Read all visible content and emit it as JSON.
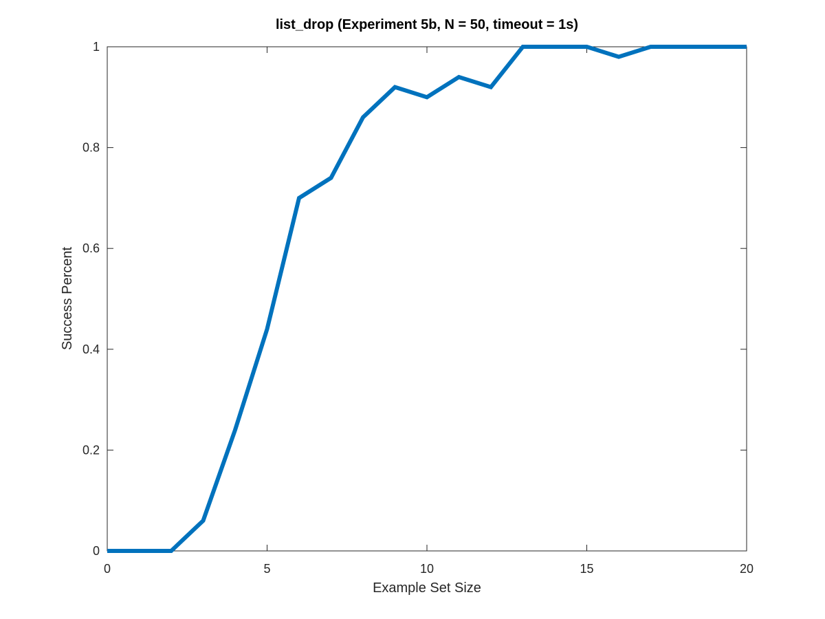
{
  "chart_data": {
    "type": "line",
    "title": "list_drop (Experiment 5b, N = 50, timeout = 1s)",
    "xlabel": "Example Set Size",
    "ylabel": "Success Percent",
    "xlim": [
      0,
      20
    ],
    "ylim": [
      0,
      1
    ],
    "xticks": [
      0,
      5,
      10,
      15,
      20
    ],
    "xtick_labels": [
      "0",
      "5",
      "10",
      "15",
      "20"
    ],
    "yticks": [
      0,
      0.2,
      0.4,
      0.6,
      0.8,
      1
    ],
    "ytick_labels": [
      "0",
      "0.2",
      "0.4",
      "0.6",
      "0.8",
      "1"
    ],
    "grid": false,
    "legend": "none",
    "series": [
      {
        "color": "#0072bd",
        "x": [
          0,
          1,
          2,
          3,
          4,
          5,
          6,
          7,
          8,
          9,
          10,
          11,
          12,
          13,
          14,
          15,
          16,
          17,
          18,
          19,
          20
        ],
        "y": [
          0,
          0,
          0,
          0.06,
          0.24,
          0.44,
          0.7,
          0.74,
          0.86,
          0.92,
          0.9,
          0.94,
          0.92,
          1.0,
          1.0,
          1.0,
          0.98,
          1.0,
          1.0,
          1.0,
          1.0
        ]
      }
    ]
  }
}
